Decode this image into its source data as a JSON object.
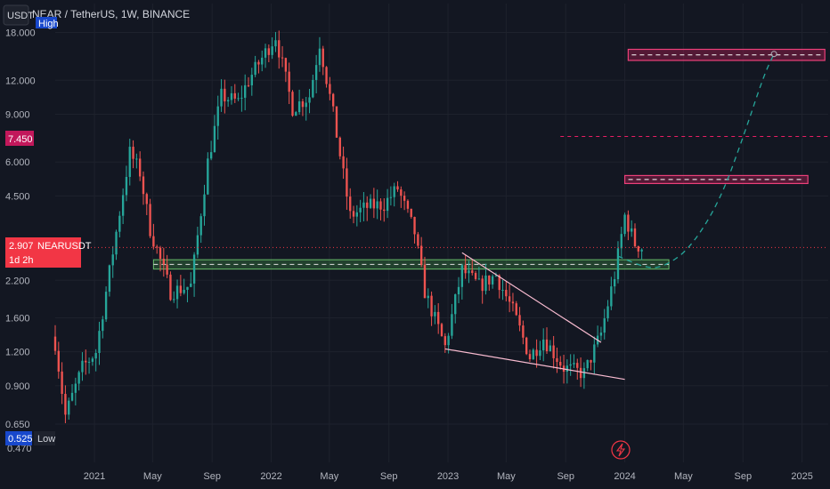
{
  "header": {
    "symbol_line": "NEAR / TetherUS, 1W, BINANCE",
    "currency_button": "USDT",
    "high_badge": "High"
  },
  "badges": {
    "marked_level": "7.450",
    "current_price": "2.907",
    "symbol": "NEARUSDT",
    "countdown": "1d 2h",
    "low_value": "0.525",
    "low_label": "Low",
    "bottom_cut_tick": "0.470"
  },
  "colors": {
    "background": "#131722",
    "up": "#26a69a",
    "down": "#ef5350",
    "zone_green": "#4caf50",
    "zone_red": "#e91e63",
    "accent_blue": "#2962ff"
  },
  "chart_data": {
    "type": "candlestick",
    "title": "NEAR / TetherUS, 1W, BINANCE",
    "scale": "log",
    "ylim": [
      0.47,
      23
    ],
    "xlim": [
      "2020-10-12",
      "2025-02-24"
    ],
    "y_ticks": [
      {
        "label": "18.000",
        "value": 18
      },
      {
        "label": "12.000",
        "value": 12
      },
      {
        "label": "9.000",
        "value": 9
      },
      {
        "label": "6.000",
        "value": 6
      },
      {
        "label": "4.500",
        "value": 4.5
      },
      {
        "label": "2.200",
        "value": 2.2
      },
      {
        "label": "1.600",
        "value": 1.6
      },
      {
        "label": "1.200",
        "value": 1.2
      },
      {
        "label": "0.900",
        "value": 0.9
      },
      {
        "label": "0.650",
        "value": 0.65
      }
    ],
    "x_ticks": [
      {
        "label": "2021",
        "date": "2021-01-01"
      },
      {
        "label": "May",
        "date": "2021-05-01"
      },
      {
        "label": "Sep",
        "date": "2021-09-01"
      },
      {
        "label": "2022",
        "date": "2022-01-01"
      },
      {
        "label": "May",
        "date": "2022-05-01"
      },
      {
        "label": "Sep",
        "date": "2022-09-01"
      },
      {
        "label": "2023",
        "date": "2023-01-01"
      },
      {
        "label": "May",
        "date": "2023-05-01"
      },
      {
        "label": "Sep",
        "date": "2023-09-01"
      },
      {
        "label": "2024",
        "date": "2024-01-01"
      },
      {
        "label": "May",
        "date": "2024-05-01"
      },
      {
        "label": "Sep",
        "date": "2024-09-01"
      },
      {
        "label": "2025",
        "date": "2025-01-01"
      }
    ],
    "price_anchors": [
      [
        "2020-10-12",
        1.3
      ],
      [
        "2020-11-02",
        0.7
      ],
      [
        "2020-12-07",
        1.05
      ],
      [
        "2021-01-04",
        1.2
      ],
      [
        "2021-02-08",
        2.8
      ],
      [
        "2021-03-15",
        6.5
      ],
      [
        "2021-04-05",
        5.5
      ],
      [
        "2021-04-26",
        3.4
      ],
      [
        "2021-06-07",
        2.0
      ],
      [
        "2021-07-19",
        2.1
      ],
      [
        "2021-08-23",
        6.0
      ],
      [
        "2021-09-20",
        10.5
      ],
      [
        "2021-10-25",
        10.0
      ],
      [
        "2021-11-15",
        12.0
      ],
      [
        "2022-01-10",
        17.5
      ],
      [
        "2022-02-14",
        9.5
      ],
      [
        "2022-03-21",
        10.5
      ],
      [
        "2022-04-11",
        16.5
      ],
      [
        "2022-05-09",
        9.0
      ],
      [
        "2022-06-13",
        3.8
      ],
      [
        "2022-07-18",
        4.1
      ],
      [
        "2022-08-22",
        4.2
      ],
      [
        "2022-09-19",
        4.8
      ],
      [
        "2022-10-24",
        3.3
      ],
      [
        "2022-11-14",
        2.0
      ],
      [
        "2022-12-26",
        1.25
      ],
      [
        "2023-01-30",
        2.4
      ],
      [
        "2023-03-06",
        2.1
      ],
      [
        "2023-04-10",
        2.3
      ],
      [
        "2023-05-15",
        1.7
      ],
      [
        "2023-06-19",
        1.15
      ],
      [
        "2023-07-17",
        1.35
      ],
      [
        "2023-08-28",
        1.05
      ],
      [
        "2023-10-09",
        1.0
      ],
      [
        "2023-11-13",
        1.4
      ],
      [
        "2023-12-11",
        2.3
      ],
      [
        "2024-01-01",
        3.8
      ],
      [
        "2024-01-22",
        3.0
      ],
      [
        "2024-02-05",
        2.907
      ]
    ],
    "last_price": 2.907,
    "demand_zone": {
      "from": "2021-05-03",
      "to": "2024-04-01",
      "top": 2.62,
      "bottom": 2.42
    },
    "target_zones": [
      {
        "from": "2024-01-01",
        "to": "2025-01-13",
        "top": 5.35,
        "bottom": 5.0
      },
      {
        "from": "2024-01-08",
        "to": "2025-02-17",
        "top": 15.6,
        "bottom": 14.2
      }
    ],
    "marked_level": {
      "value": 7.45,
      "from": "2023-08-21",
      "to": "2025-02-24"
    },
    "wedge_upper": [
      [
        "2023-01-30",
        2.78
      ],
      [
        "2023-11-13",
        1.3
      ]
    ],
    "wedge_lower": [
      [
        "2022-12-26",
        1.23
      ],
      [
        "2024-01-01",
        0.95
      ]
    ],
    "projection_path": [
      [
        "2023-12-18",
        2.7
      ],
      [
        "2024-02-12",
        2.45
      ],
      [
        "2024-03-18",
        2.45
      ],
      [
        "2024-05-13",
        2.85
      ],
      [
        "2024-07-15",
        4.3
      ],
      [
        "2024-09-02",
        7.45
      ],
      [
        "2024-10-14",
        12.5
      ],
      [
        "2024-11-04",
        15.0
      ]
    ]
  }
}
